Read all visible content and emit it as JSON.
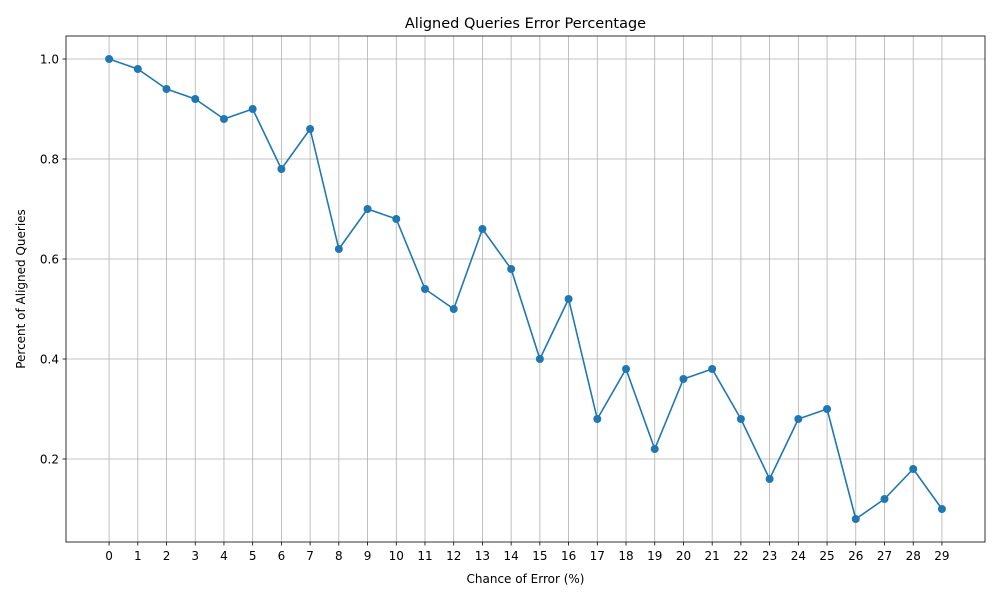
{
  "chart_data": {
    "type": "line",
    "title": "Aligned Queries Error Percentage",
    "xlabel": "Chance of Error (%)",
    "ylabel": "Percent of Aligned Queries",
    "x": [
      0,
      1,
      2,
      3,
      4,
      5,
      6,
      7,
      8,
      9,
      10,
      11,
      12,
      13,
      14,
      15,
      16,
      17,
      18,
      19,
      20,
      21,
      22,
      23,
      24,
      25,
      26,
      27,
      28,
      29
    ],
    "series": [
      {
        "values": [
          1.0,
          0.98,
          0.94,
          0.92,
          0.88,
          0.9,
          0.78,
          0.86,
          0.62,
          0.7,
          0.68,
          0.54,
          0.5,
          0.66,
          0.58,
          0.4,
          0.52,
          0.28,
          0.38,
          0.22,
          0.36,
          0.38,
          0.28,
          0.16,
          0.28,
          0.3,
          0.08,
          0.12,
          0.18,
          0.1
        ],
        "color": "#1f77b4",
        "marker": "circle"
      }
    ],
    "xticks": [
      "0",
      "1",
      "2",
      "3",
      "4",
      "5",
      "6",
      "7",
      "8",
      "9",
      "10",
      "11",
      "12",
      "13",
      "14",
      "15",
      "16",
      "17",
      "18",
      "19",
      "20",
      "21",
      "22",
      "23",
      "24",
      "25",
      "26",
      "27",
      "28",
      "29"
    ],
    "yticks": [
      "0.2",
      "0.4",
      "0.6",
      "0.8",
      "1.0"
    ],
    "xlim": [
      -1.5,
      30.5
    ],
    "ylim": [
      0.034,
      1.046
    ],
    "grid": true,
    "line_color": "#1f77b4",
    "grid_color": "#b0b0b0"
  }
}
